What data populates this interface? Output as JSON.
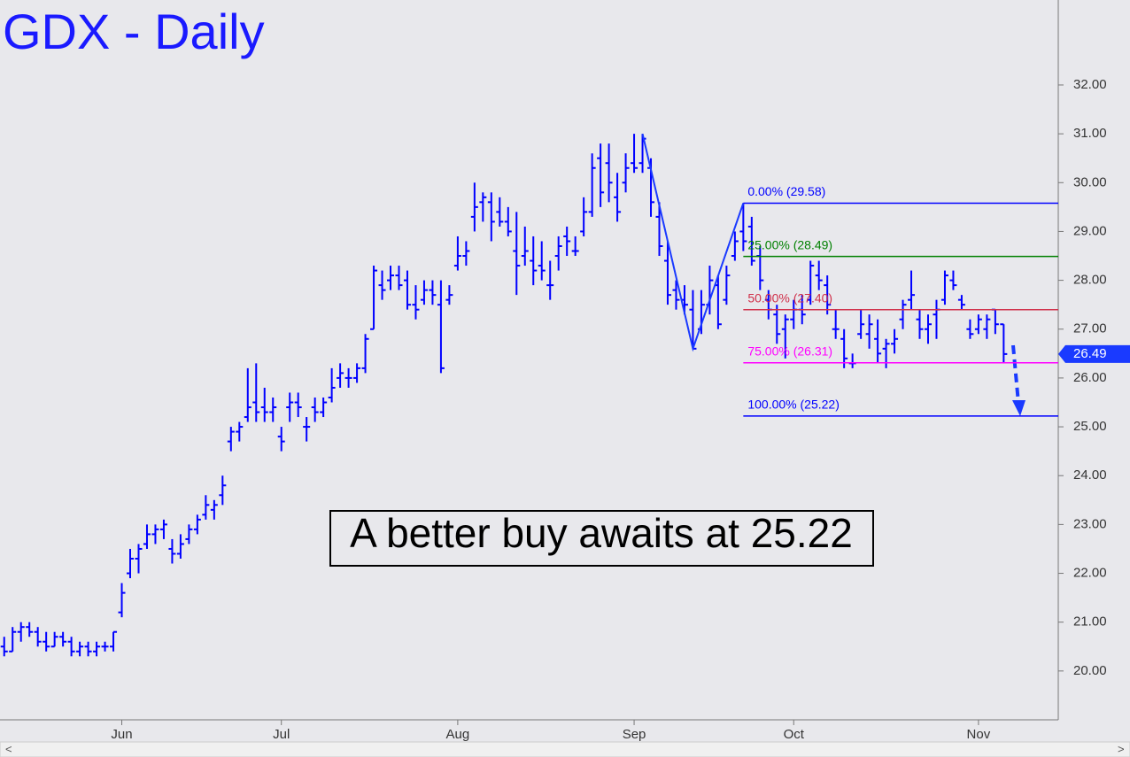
{
  "chart_data": {
    "type": "ohlc",
    "title": "GDX - Daily",
    "annotation": "A better buy awaits at 25.22",
    "color": "#0000ff",
    "categories": [
      null,
      null,
      null,
      null,
      null,
      null,
      null,
      null,
      null,
      null,
      null,
      null,
      null,
      null,
      "Jun",
      null,
      null,
      null,
      null,
      null,
      null,
      null,
      null,
      null,
      null,
      null,
      null,
      null,
      null,
      null,
      null,
      null,
      null,
      "Jul",
      null,
      null,
      null,
      null,
      null,
      null,
      null,
      null,
      null,
      null,
      null,
      null,
      null,
      null,
      null,
      null,
      null,
      null,
      null,
      null,
      "Aug",
      null,
      null,
      null,
      null,
      null,
      null,
      null,
      null,
      null,
      null,
      null,
      null,
      null,
      null,
      null,
      null,
      null,
      null,
      null,
      null,
      "Sep",
      null,
      null,
      null,
      null,
      null,
      null,
      null,
      null,
      null,
      null,
      null,
      null,
      null,
      null,
      null,
      null,
      null,
      null,
      "Oct",
      null,
      null,
      null,
      null,
      null,
      null,
      null,
      null,
      null,
      null,
      null,
      null,
      null,
      null,
      null,
      null,
      null,
      null,
      null,
      null,
      null,
      "Nov",
      null,
      null,
      null,
      null,
      null,
      null,
      null,
      null,
      null
    ],
    "open": [
      20.5,
      20.4,
      20.8,
      20.9,
      20.8,
      20.6,
      20.5,
      20.7,
      20.6,
      20.4,
      20.5,
      20.4,
      20.5,
      20.5,
      21.2,
      22.0,
      22.3,
      22.6,
      22.8,
      22.9,
      22.5,
      22.4,
      22.7,
      22.9,
      23.2,
      23.3,
      23.6,
      24.7,
      24.9,
      25.2,
      25.5,
      25.4,
      25.3,
      24.8,
      25.4,
      25.5,
      25.0,
      25.4,
      25.3,
      25.6,
      26.0,
      26.0,
      26.0,
      26.2,
      27.0,
      27.9,
      28.0,
      28.1,
      28.0,
      27.5,
      27.6,
      27.8,
      27.5,
      27.6,
      28.3,
      28.5,
      29.3,
      29.6,
      29.6,
      29.4,
      29.2,
      28.6,
      28.5,
      28.4,
      28.3,
      27.9,
      28.5,
      28.9,
      28.6,
      29.0,
      29.4,
      30.5,
      30.4,
      29.7,
      30.0,
      30.4,
      30.4,
      30.3,
      29.3,
      28.4,
      27.8,
      27.6,
      27.4,
      27.0,
      27.5,
      27.9,
      27.6,
      28.5,
      29.0,
      29.1,
      28.5,
      27.6,
      27.3,
      27.0,
      27.2,
      27.4,
      27.6,
      28.1,
      27.9,
      27.0,
      26.8,
      26.3,
      26.9,
      26.9,
      26.8,
      26.6,
      26.7,
      27.2,
      27.6,
      27.2,
      27.0,
      27.3,
      27.6,
      28.0,
      27.6,
      27.0,
      27.0,
      27.0,
      27.4,
      27.1,
      null,
      null,
      null,
      null,
      null,
      null
    ],
    "high": [
      20.7,
      20.9,
      21.0,
      21.0,
      20.9,
      20.8,
      20.8,
      20.8,
      20.7,
      20.6,
      20.6,
      20.6,
      20.6,
      20.8,
      21.8,
      22.5,
      22.6,
      23.0,
      23.0,
      23.1,
      22.7,
      22.8,
      23.0,
      23.2,
      23.6,
      23.5,
      24.0,
      25.0,
      25.1,
      26.2,
      26.3,
      25.8,
      25.6,
      25.0,
      25.7,
      25.7,
      25.2,
      25.6,
      25.6,
      26.2,
      26.3,
      26.2,
      26.3,
      26.9,
      28.3,
      28.2,
      28.3,
      28.3,
      28.2,
      27.9,
      28.0,
      28.0,
      28.0,
      27.9,
      28.9,
      28.8,
      30.0,
      29.8,
      29.8,
      29.7,
      29.5,
      29.4,
      29.1,
      28.9,
      28.8,
      28.4,
      28.9,
      29.1,
      28.9,
      29.7,
      30.6,
      30.8,
      30.8,
      30.2,
      30.6,
      31.0,
      31.0,
      30.5,
      29.6,
      28.8,
      28.0,
      27.9,
      27.8,
      27.8,
      28.3,
      28.1,
      28.3,
      29.0,
      29.58,
      29.3,
      28.7,
      27.8,
      27.5,
      27.3,
      27.6,
      27.7,
      28.4,
      28.4,
      28.1,
      27.4,
      27.0,
      26.5,
      27.4,
      27.3,
      27.2,
      26.8,
      27.0,
      27.6,
      28.2,
      27.4,
      27.3,
      27.6,
      28.2,
      28.2,
      27.7,
      27.2,
      27.3,
      27.3,
      27.4,
      27.1,
      null,
      null,
      null,
      null,
      null,
      null
    ],
    "low": [
      20.3,
      20.4,
      20.6,
      20.7,
      20.5,
      20.4,
      20.5,
      20.5,
      20.3,
      20.3,
      20.3,
      20.3,
      20.4,
      20.4,
      21.1,
      21.9,
      22.0,
      22.5,
      22.6,
      22.7,
      22.2,
      22.3,
      22.6,
      22.8,
      23.1,
      23.1,
      23.4,
      24.5,
      24.7,
      25.1,
      25.1,
      25.1,
      25.1,
      24.5,
      25.1,
      25.2,
      24.7,
      25.1,
      25.2,
      25.5,
      25.8,
      25.8,
      25.9,
      26.1,
      27.0,
      27.6,
      27.8,
      27.8,
      27.4,
      27.2,
      27.5,
      27.5,
      26.1,
      27.5,
      28.2,
      28.3,
      29.0,
      29.2,
      28.8,
      29.1,
      28.9,
      27.7,
      28.3,
      27.9,
      28.0,
      27.6,
      28.2,
      28.5,
      28.5,
      28.9,
      29.3,
      29.5,
      29.6,
      29.2,
      29.8,
      30.2,
      30.2,
      29.3,
      28.5,
      27.5,
      27.4,
      27.3,
      26.6,
      26.9,
      27.3,
      27.0,
      27.5,
      28.4,
      28.6,
      28.3,
      27.8,
      27.2,
      26.7,
      26.4,
      27.0,
      27.1,
      27.5,
      27.8,
      27.3,
      26.8,
      26.2,
      26.2,
      26.8,
      26.6,
      26.3,
      26.2,
      26.5,
      27.0,
      27.4,
      26.8,
      26.7,
      26.8,
      27.5,
      27.8,
      27.4,
      26.8,
      26.9,
      26.8,
      26.9,
      26.3,
      null,
      null,
      null,
      null,
      null,
      null
    ],
    "close": [
      20.4,
      20.8,
      20.9,
      20.8,
      20.6,
      20.5,
      20.7,
      20.6,
      20.4,
      20.5,
      20.4,
      20.5,
      20.5,
      20.8,
      21.6,
      22.3,
      22.5,
      22.8,
      22.9,
      23.0,
      22.4,
      22.6,
      22.9,
      23.1,
      23.4,
      23.4,
      23.8,
      24.9,
      25.0,
      25.4,
      25.3,
      25.3,
      25.4,
      24.7,
      25.5,
      25.4,
      25.0,
      25.3,
      25.5,
      25.8,
      26.1,
      26.0,
      26.2,
      26.8,
      28.2,
      27.8,
      28.1,
      27.9,
      27.5,
      27.4,
      27.8,
      27.7,
      26.2,
      27.7,
      28.5,
      28.6,
      29.5,
      29.7,
      29.2,
      29.2,
      29.0,
      28.3,
      28.6,
      28.2,
      28.2,
      27.9,
      28.7,
      28.8,
      28.6,
      29.4,
      30.3,
      29.8,
      30.0,
      29.4,
      30.3,
      30.3,
      30.9,
      29.6,
      28.7,
      27.7,
      27.6,
      27.5,
      26.6,
      27.5,
      28.0,
      27.1,
      28.1,
      28.8,
      28.8,
      28.4,
      28.0,
      27.4,
      26.9,
      27.2,
      27.4,
      27.3,
      28.3,
      28.0,
      27.5,
      27.0,
      26.4,
      26.3,
      27.1,
      27.1,
      26.5,
      26.7,
      26.8,
      27.5,
      27.7,
      27.0,
      27.1,
      27.4,
      28.1,
      27.9,
      27.5,
      26.9,
      27.2,
      27.2,
      27.1,
      26.49,
      null,
      null,
      null,
      null,
      null,
      null
    ],
    "ylim": [
      19.0,
      33.74
    ],
    "yticks": [
      {
        "value": 20,
        "label": "20.00"
      },
      {
        "value": 21,
        "label": "21.00"
      },
      {
        "value": 22,
        "label": "22.00"
      },
      {
        "value": 23,
        "label": "23.00"
      },
      {
        "value": 24,
        "label": "24.00"
      },
      {
        "value": 25,
        "label": "25.00"
      },
      {
        "value": 26,
        "label": "26.00"
      },
      {
        "value": 27,
        "label": "27.00"
      },
      {
        "value": 28,
        "label": "28.00"
      },
      {
        "value": 29,
        "label": "29.00"
      },
      {
        "value": 30,
        "label": "30.00"
      },
      {
        "value": 31,
        "label": "31.00"
      },
      {
        "value": 32,
        "label": "32.00"
      }
    ],
    "levels": [
      {
        "value": 29.58,
        "label": "0.00% (29.58)",
        "color": "#0000ff"
      },
      {
        "value": 28.49,
        "label": "25.00% (28.49)",
        "color": "#008000"
      },
      {
        "value": 27.4,
        "label": "50.00% (27.40)",
        "color": "#d0304a"
      },
      {
        "value": 26.31,
        "label": "75.00% (26.31)",
        "color": "#ff00ff"
      },
      {
        "value": 25.22,
        "label": "100.00% (25.22)",
        "color": "#0000ff"
      }
    ],
    "last_price": 26.49
  }
}
